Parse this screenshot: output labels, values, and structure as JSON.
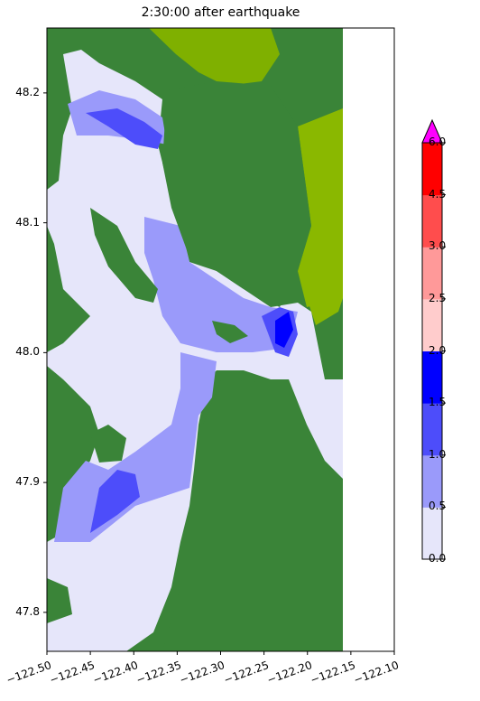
{
  "title": "2:30:00 after earthquake",
  "chart_data": {
    "type": "heatmap",
    "title": "2:30:00 after earthquake",
    "xlim": [
      -122.5,
      -122.1
    ],
    "ylim": [
      47.77,
      48.25
    ],
    "x_ticks": [
      "−122.50",
      "−122.45",
      "−122.40",
      "−122.35",
      "−122.30",
      "−122.25",
      "−122.20",
      "−122.15",
      "−122.10"
    ],
    "x_tick_values": [
      -122.5,
      -122.45,
      -122.4,
      -122.35,
      -122.3,
      -122.25,
      -122.2,
      -122.15,
      -122.1
    ],
    "y_ticks": [
      "47.8",
      "47.9",
      "48.0",
      "48.1",
      "48.2"
    ],
    "y_tick_values": [
      47.8,
      47.9,
      48.0,
      48.1,
      48.2
    ],
    "grid": false,
    "colorbar": {
      "placement": "right",
      "extend": "max",
      "ticks": [
        "0.0",
        "0.5",
        "1.0",
        "1.5",
        "2.0",
        "2.5",
        "3.0",
        "4.5",
        "6.0"
      ],
      "levels": [
        0.0,
        0.5,
        1.0,
        1.5,
        2.0,
        2.5,
        3.0,
        4.5,
        6.0
      ],
      "colors": [
        "#e6e6fa",
        "#9a9afa",
        "#4d4dfa",
        "#0000ff",
        "#ffcccc",
        "#ff9999",
        "#ff4d4d",
        "#ff0000"
      ],
      "over_color": "#ff00ff"
    },
    "land_color": "#3a8438",
    "high_land_color": "#7fb000",
    "no_data_color": "#ffffff"
  }
}
